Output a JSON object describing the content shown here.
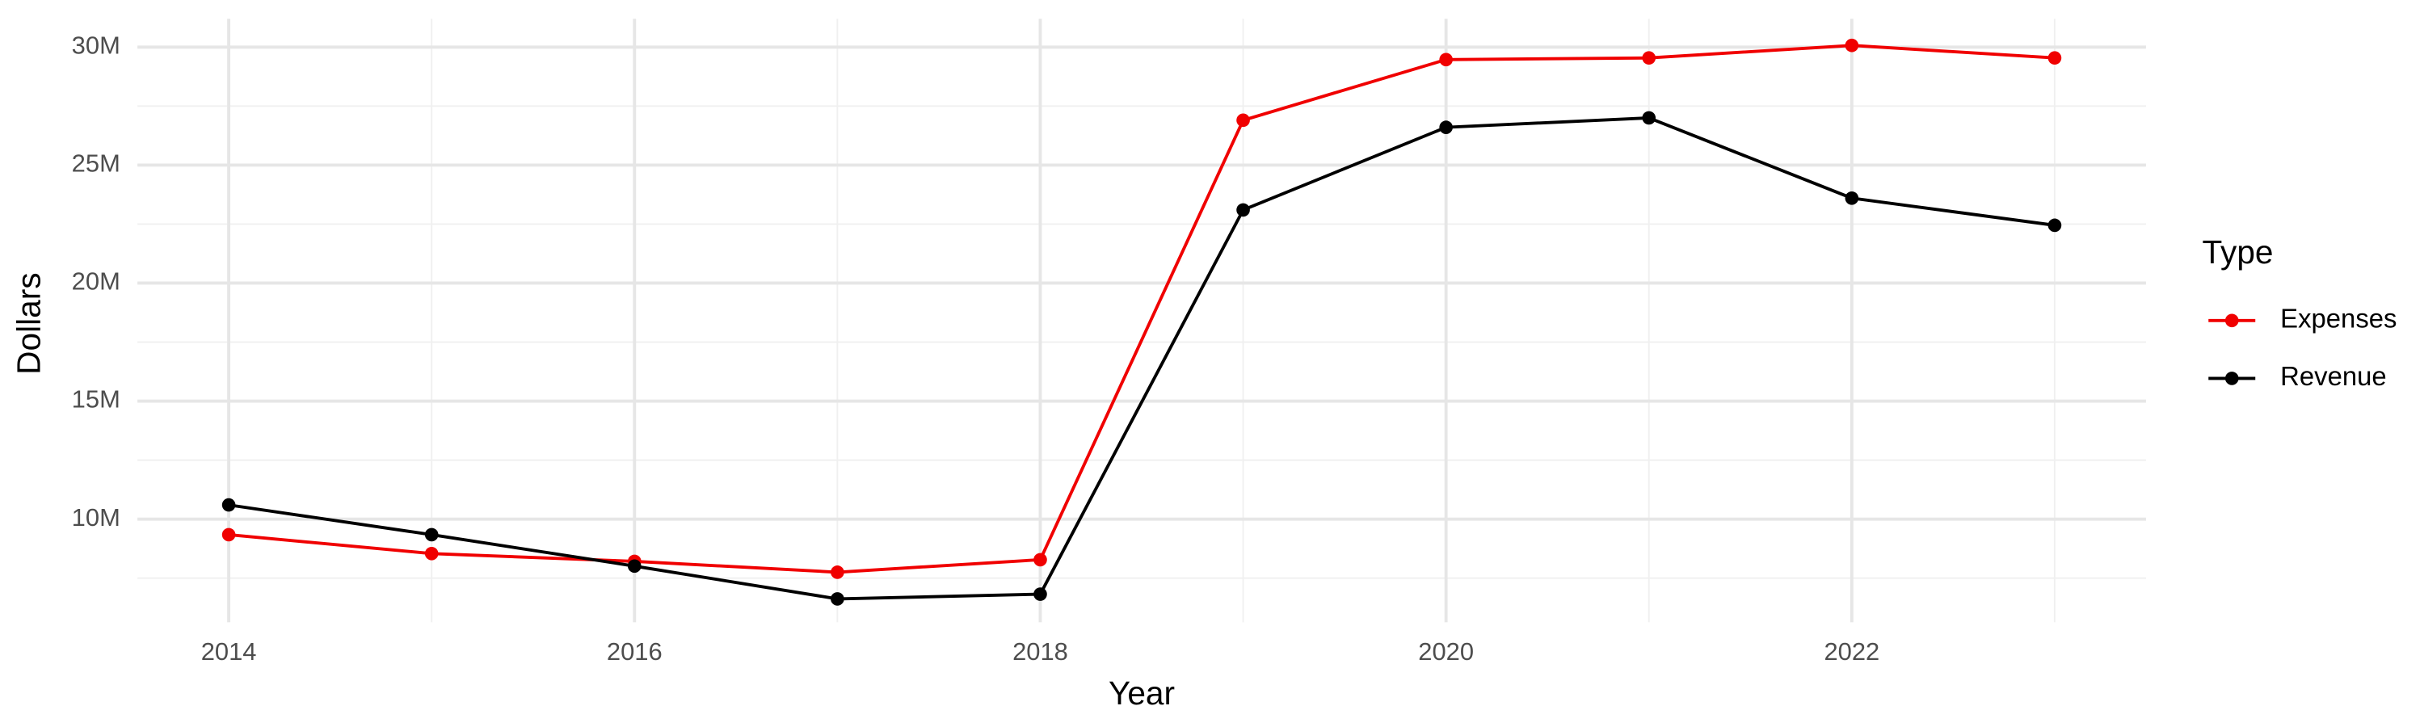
{
  "chart_data": {
    "type": "line",
    "x_label": "Year",
    "y_label": "Dollars",
    "legend_title": "Type",
    "legend_position": "right",
    "grid": true,
    "x": [
      2014,
      2015,
      2016,
      2017,
      2018,
      2019,
      2020,
      2021,
      2022,
      2023
    ],
    "series": [
      {
        "name": "Expenses",
        "color": "#f00000",
        "values": [
          9340000,
          8540000,
          8210000,
          7750000,
          8280000,
          26900000,
          29470000,
          29540000,
          30070000,
          29540000
        ]
      },
      {
        "name": "Revenue",
        "color": "#000000",
        "values": [
          10600000,
          9340000,
          8010000,
          6620000,
          6820000,
          23100000,
          26600000,
          27000000,
          23600000,
          22450000
        ]
      }
    ],
    "xlim": [
      2013.55,
      2023.45
    ],
    "xticks": [
      2014,
      2016,
      2018,
      2020,
      2022
    ],
    "ylim": [
      5630000,
      31200000
    ],
    "yticks": [
      {
        "value": 10000000,
        "label": "10M"
      },
      {
        "value": 15000000,
        "label": "15M"
      },
      {
        "value": 20000000,
        "label": "20M"
      },
      {
        "value": 25000000,
        "label": "25M"
      },
      {
        "value": 30000000,
        "label": "30M"
      }
    ]
  }
}
